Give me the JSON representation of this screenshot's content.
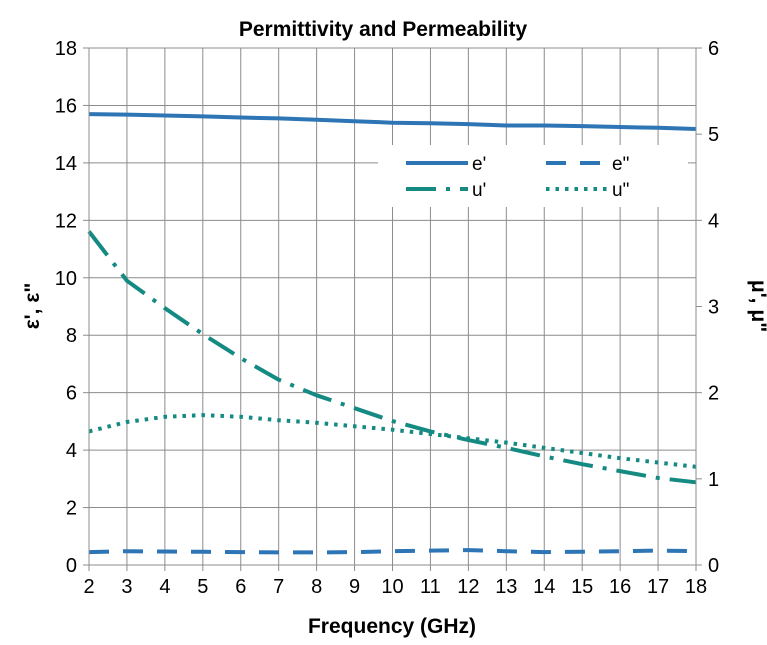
{
  "chart_data": {
    "type": "line",
    "title": "Permittivity and Permeability",
    "xlabel": "Frequency (GHz)",
    "ylabel_left": "ε', ε\"",
    "ylabel_right": "μ', μ\"",
    "xlim": [
      2,
      18
    ],
    "ylim_left": [
      0,
      18
    ],
    "ylim_right": [
      0,
      6
    ],
    "x_ticks": [
      "2",
      "3",
      "4",
      "5",
      "6",
      "7",
      "8",
      "9",
      "10",
      "11",
      "12",
      "13",
      "14",
      "15",
      "16",
      "17",
      "18"
    ],
    "y_left_ticks": [
      "0",
      "2",
      "4",
      "6",
      "8",
      "10",
      "12",
      "14",
      "16",
      "18"
    ],
    "y_right_ticks": [
      "0",
      "1",
      "2",
      "3",
      "4",
      "5",
      "6"
    ],
    "grid": true,
    "legend_position": "top-right",
    "x": [
      2,
      3,
      4,
      5,
      6,
      7,
      8,
      9,
      10,
      11,
      12,
      13,
      14,
      15,
      16,
      17,
      18
    ],
    "series": [
      {
        "name": "e'",
        "axis": "left",
        "style": "solid",
        "color": "#2E75B6",
        "values": [
          15.7,
          15.68,
          15.65,
          15.62,
          15.58,
          15.55,
          15.5,
          15.45,
          15.4,
          15.38,
          15.35,
          15.3,
          15.3,
          15.28,
          15.25,
          15.22,
          15.18
        ]
      },
      {
        "name": "e\"",
        "axis": "left",
        "style": "dash",
        "color": "#2E75B6",
        "values": [
          0.45,
          0.48,
          0.47,
          0.46,
          0.45,
          0.44,
          0.44,
          0.45,
          0.48,
          0.5,
          0.52,
          0.48,
          0.45,
          0.46,
          0.48,
          0.5,
          0.48
        ]
      },
      {
        "name": "u'",
        "axis": "right",
        "style": "dashdot",
        "color": "#158A82",
        "values": [
          3.87,
          3.3,
          2.98,
          2.68,
          2.4,
          2.15,
          1.97,
          1.82,
          1.67,
          1.55,
          1.45,
          1.36,
          1.26,
          1.17,
          1.09,
          1.01,
          0.96
        ]
      },
      {
        "name": "u\"",
        "axis": "right",
        "style": "dot",
        "color": "#158A82",
        "values": [
          1.55,
          1.66,
          1.72,
          1.74,
          1.72,
          1.68,
          1.65,
          1.61,
          1.57,
          1.52,
          1.47,
          1.42,
          1.36,
          1.3,
          1.24,
          1.19,
          1.14
        ]
      }
    ]
  }
}
